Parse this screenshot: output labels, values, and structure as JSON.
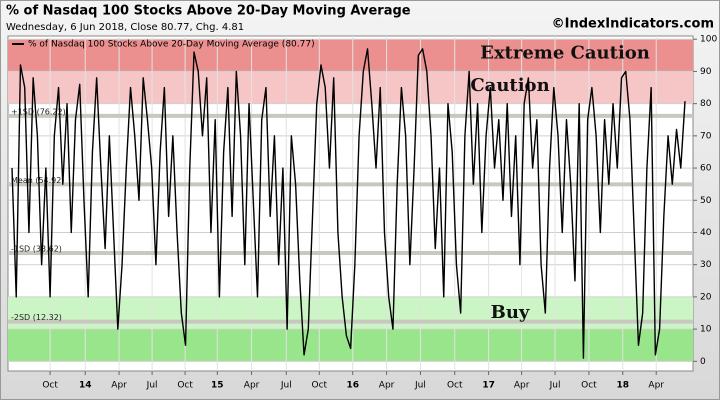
{
  "chart_data": {
    "type": "line",
    "title": "% of Nasdaq 100 Stocks Above 20-Day Moving Average",
    "subtitle": "Wednesday, 6 Jun 2018, Close 80.77, Chg. 4.81",
    "source": "©IndexIndicators.com",
    "series": [
      {
        "name": "% of Nasdaq 100 Stocks Above 20-Day Moving Average (80.77)",
        "color": "#000000",
        "values": [
          60,
          20,
          92,
          85,
          40,
          88,
          70,
          30,
          60,
          20,
          70,
          85,
          55,
          80,
          40,
          75,
          86,
          50,
          20,
          65,
          88,
          60,
          35,
          70,
          40,
          10,
          30,
          60,
          85,
          70,
          50,
          88,
          75,
          60,
          30,
          65,
          85,
          45,
          70,
          40,
          15,
          5,
          60,
          96,
          90,
          70,
          88,
          40,
          75,
          20,
          65,
          85,
          45,
          90,
          70,
          30,
          80,
          50,
          20,
          75,
          85,
          45,
          70,
          30,
          60,
          10,
          70,
          55,
          25,
          2,
          10,
          45,
          80,
          92,
          85,
          60,
          88,
          40,
          20,
          8,
          4,
          30,
          70,
          90,
          97,
          80,
          60,
          85,
          40,
          20,
          10,
          55,
          85,
          70,
          30,
          60,
          95,
          97,
          90,
          70,
          35,
          60,
          20,
          80,
          65,
          30,
          15,
          70,
          90,
          55,
          80,
          40,
          70,
          85,
          60,
          75,
          50,
          80,
          45,
          70,
          30,
          80,
          88,
          60,
          75,
          30,
          15,
          60,
          85,
          70,
          40,
          75,
          55,
          25,
          80,
          1,
          75,
          85,
          70,
          40,
          75,
          55,
          80,
          60,
          88,
          90,
          75,
          40,
          5,
          15,
          60,
          85,
          2,
          10,
          45,
          70,
          55,
          72,
          60,
          80.77
        ]
      }
    ],
    "xlim": [
      0,
      159
    ],
    "xticks": [
      {
        "value": 9,
        "label": "Oct"
      },
      {
        "value": 17.3,
        "label": "14"
      },
      {
        "value": 25.3,
        "label": "Apr"
      },
      {
        "value": 33.1,
        "label": "Jul"
      },
      {
        "value": 40.9,
        "label": "Oct"
      },
      {
        "value": 48.5,
        "label": "15"
      },
      {
        "value": 56.6,
        "label": "Apr"
      },
      {
        "value": 64.8,
        "label": "Jul"
      },
      {
        "value": 72.6,
        "label": "Oct"
      },
      {
        "value": 80.5,
        "label": "16"
      },
      {
        "value": 88.5,
        "label": "Apr"
      },
      {
        "value": 96.5,
        "label": "Jul"
      },
      {
        "value": 104.6,
        "label": "Oct"
      },
      {
        "value": 112.6,
        "label": "17"
      },
      {
        "value": 120.4,
        "label": "Apr"
      },
      {
        "value": 128.3,
        "label": "Jul"
      },
      {
        "value": 136.3,
        "label": "Oct"
      },
      {
        "value": 144.3,
        "label": "18"
      },
      {
        "value": 152.2,
        "label": "Apr"
      }
    ],
    "ylim": [
      -3,
      101
    ],
    "yticks": [
      0,
      10,
      20,
      30,
      40,
      50,
      60,
      70,
      80,
      90,
      100
    ],
    "grid": true,
    "bands": [
      {
        "from": 90,
        "to": 100,
        "color": "#ec8f8f"
      },
      {
        "from": 80,
        "to": 90,
        "color": "#f6c6c6"
      },
      {
        "from": 10,
        "to": 20,
        "color": "#ccf5c6"
      },
      {
        "from": 0,
        "to": 10,
        "color": "#98e58c"
      }
    ],
    "ref_lines": [
      {
        "value": 76.22,
        "label": "+1SD (76.22)"
      },
      {
        "value": 54.92,
        "label": "Mean (54.92)"
      },
      {
        "value": 33.62,
        "label": "-1SD (33.62)"
      },
      {
        "value": 12.32,
        "label": "-2SD (12.32)"
      }
    ],
    "annotations": [
      "Extreme Caution",
      "Caution",
      "Buy"
    ]
  }
}
